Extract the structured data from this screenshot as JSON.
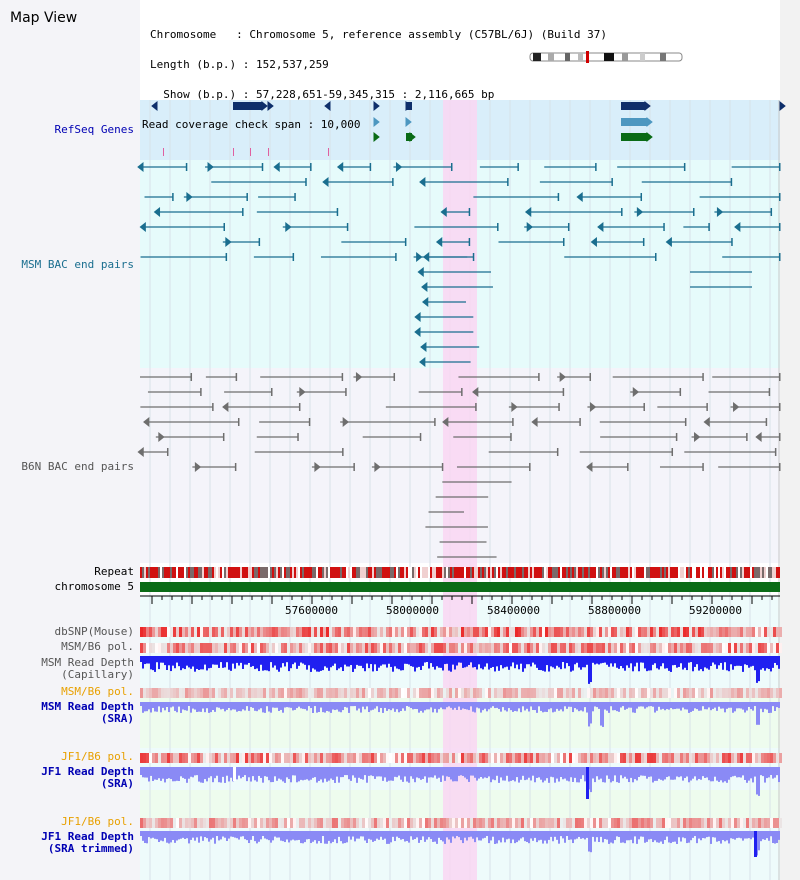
{
  "header": {
    "title": "Map View",
    "chromosome_line": "Chromosome   : Chromosome 5, reference assembly (C57BL/6J) (Build 37)",
    "length_line": "Length (b.p.) : 152,537,259",
    "show_line": "  Show (b.p.) : 57,228,651-59,345,315 : 2,116,665 bp",
    "coverage_line": "Read coverage check span : 10,000"
  },
  "tracks": {
    "refseq": "RefSeq Genes",
    "msm_bac": "MSM BAC end pairs",
    "b6n_bac": "B6N BAC end pairs",
    "repeat": "Repeat",
    "chromosome": "chromosome 5",
    "dbsnp": "dbSNP(Mouse)",
    "msm_b6_pol": "MSM/B6 pol.",
    "msm_depth_cap_1": "MSM Read Depth",
    "msm_depth_cap_2": "(Capillary)",
    "msm_b6_pol2": "MSM/B6 pol.",
    "msm_depth_sra_1": "MSM Read Depth",
    "msm_depth_sra_2": "(SRA)",
    "jf1_b6_pol": "JF1/B6 pol.",
    "jf1_depth_1": "JF1 Read Depth",
    "jf1_depth_2": "(SRA)",
    "jf1_b6_pol2": "JF1/B6 pol.",
    "jf1_trim_1": "JF1 Read Depth",
    "jf1_trim_2": "(SRA trimmed)"
  },
  "axis": {
    "ticks": [
      "57600000",
      "58000000",
      "58400000",
      "58800000",
      "59200000"
    ]
  },
  "colors": {
    "highlight": "#f9d6f2",
    "refseq_bg": "#d9eefa",
    "msm_bg": "#e6fbfb",
    "green_bg": "#eefcee",
    "gene_dark": "#0f2f6b",
    "gene_light": "#4d97c0",
    "gene_green": "#0a6b16",
    "msm_line": "#1a6e8f",
    "b6n_line": "#6e6e6e",
    "label_blue": "#0000b3",
    "label_teal": "#1a6e8f",
    "label_gray": "#555555",
    "label_orange": "#e8a000",
    "depth_blue": "#2020f0",
    "depth_light": "#8a8af5"
  }
}
